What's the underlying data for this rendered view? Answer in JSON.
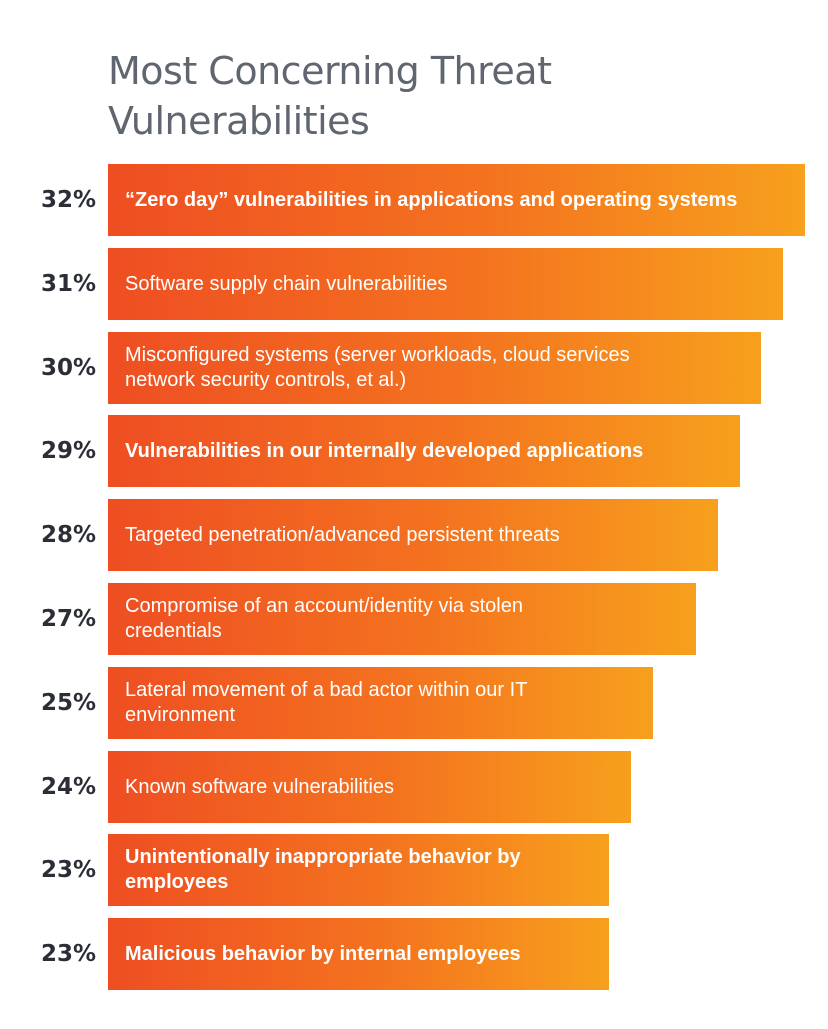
{
  "title": "Most Concerning Threat Vulnerabilities",
  "colors": {
    "title": "#5f6670",
    "percent_text": "#2b2e36",
    "bar_gradient_start": "#ee4e22",
    "bar_gradient_end": "#f7a01d",
    "bar_text": "#ffffff"
  },
  "chart_data": {
    "type": "bar",
    "orientation": "horizontal",
    "title": "Most Concerning Threat Vulnerabilities",
    "xlim": [
      0,
      32
    ],
    "grid": false,
    "categories": [
      "“Zero day” vulnerabilities in applications and operating systems",
      "Software supply chain vulnerabilities",
      "Misconfigured systems (server workloads, cloud services\nnetwork security controls, et al.)",
      "Vulnerabilities in our internally developed applications",
      "Targeted penetration/advanced persistent threats",
      "Compromise of an account/identity via stolen\ncredentials",
      "Lateral movement of a bad actor within our IT\nenvironment",
      "Known software vulnerabilities",
      "Unintentionally inappropriate behavior by\nemployees",
      "Malicious behavior by internal employees"
    ],
    "values": [
      32,
      31,
      30,
      29,
      28,
      27,
      25,
      24,
      23,
      23
    ],
    "value_labels": [
      "32%",
      "31%",
      "30%",
      "29%",
      "28%",
      "27%",
      "25%",
      "24%",
      "23%",
      "23%"
    ],
    "bold_labels": [
      true,
      false,
      false,
      true,
      false,
      false,
      false,
      false,
      true,
      true
    ]
  }
}
